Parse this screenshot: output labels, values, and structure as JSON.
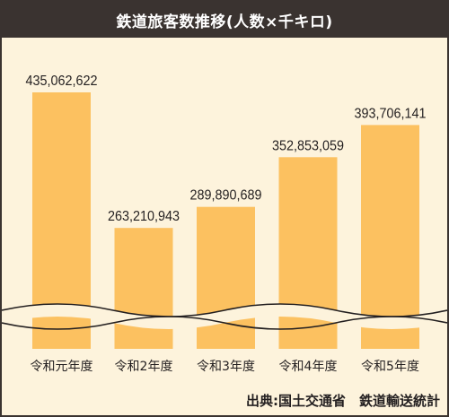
{
  "chart_data": {
    "type": "bar",
    "title": "鉄道旅客数推移(人数×千キロ)",
    "categories": [
      "令和元年度",
      "令和2年度",
      "令和3年度",
      "令和4年度",
      "令和5年度"
    ],
    "values": [
      435062622,
      263210943,
      289890689,
      352853059,
      393706141
    ],
    "value_labels": [
      "435,062,622",
      "263,210,943",
      "289,890,689",
      "352,853,059",
      "393,706,141"
    ],
    "source": "出典:国土交通省　鉄道輸送統計",
    "axis_break": true,
    "grid": false,
    "legend": "none"
  },
  "colors": {
    "bar": "#fcc160",
    "background": "#fdf3dc",
    "title_bg": "#3a3330"
  }
}
